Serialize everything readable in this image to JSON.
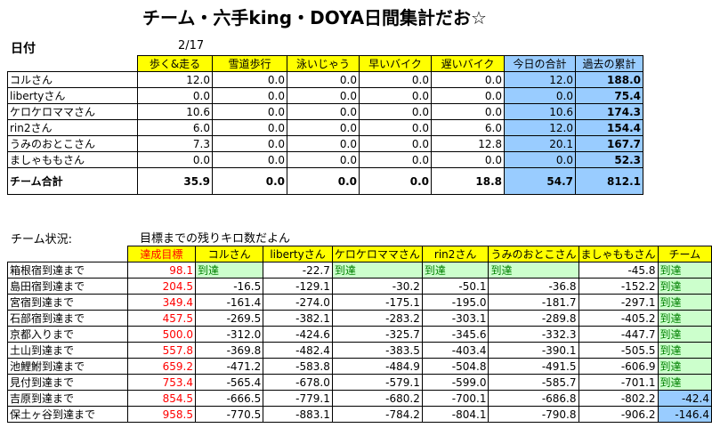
{
  "title": "チーム・六手king・DOYA日間集計だお☆",
  "date": {
    "label": "日付",
    "value": "2/17"
  },
  "daily": {
    "columns": [
      "歩く&走る",
      "雪道歩行",
      "泳いじゃう",
      "早いバイク",
      "遅いバイク",
      "今日の合計",
      "過去の累計"
    ],
    "rows": [
      {
        "name": "コルさん",
        "values": [
          "12.0",
          "0.0",
          "0.0",
          "0.0",
          "0.0",
          "12.0",
          "188.0"
        ]
      },
      {
        "name": "libertyさん",
        "values": [
          "0.0",
          "0.0",
          "0.0",
          "0.0",
          "0.0",
          "0.0",
          "75.4"
        ]
      },
      {
        "name": "ケロケロママさん",
        "values": [
          "10.6",
          "0.0",
          "0.0",
          "0.0",
          "0.0",
          "10.6",
          "174.3"
        ]
      },
      {
        "name": "rin2さん",
        "values": [
          "6.0",
          "0.0",
          "0.0",
          "0.0",
          "6.0",
          "12.0",
          "154.4"
        ]
      },
      {
        "name": "うみのおとこさん",
        "values": [
          "7.3",
          "0.0",
          "0.0",
          "0.0",
          "12.8",
          "20.1",
          "167.7"
        ]
      },
      {
        "name": "ましゃももさん",
        "values": [
          "0.0",
          "0.0",
          "0.0",
          "0.0",
          "0.0",
          "0.0",
          "52.3"
        ]
      }
    ],
    "total": {
      "name": "チーム合計",
      "values": [
        "35.9",
        "0.0",
        "0.0",
        "0.0",
        "18.8",
        "54.7",
        "812.1"
      ]
    }
  },
  "status": {
    "label": "チーム状況:",
    "note": "目標までの残りキロ数だよん",
    "columns": [
      "達成目標",
      "コルさん",
      "libertyさん",
      "ケロケロママさん",
      "rin2さん",
      "うみのおとこさん",
      "ましゃももさん",
      "チーム"
    ],
    "rows": [
      {
        "name": "箱根宿到達まで",
        "target": "98.1",
        "cells": [
          "到達",
          "-22.7",
          "到達",
          "到達",
          "到達",
          "-45.8",
          "到達"
        ]
      },
      {
        "name": "島田宿到達まで",
        "target": "204.5",
        "cells": [
          "-16.5",
          "-129.1",
          "-30.2",
          "-50.1",
          "-36.8",
          "-152.2",
          "到達"
        ]
      },
      {
        "name": "宮宿到達まで",
        "target": "349.4",
        "cells": [
          "-161.4",
          "-274.0",
          "-175.1",
          "-195.0",
          "-181.7",
          "-297.1",
          "到達"
        ]
      },
      {
        "name": "石部宿到達まで",
        "target": "457.5",
        "cells": [
          "-269.5",
          "-382.1",
          "-283.2",
          "-303.1",
          "-289.8",
          "-405.2",
          "到達"
        ]
      },
      {
        "name": "京都入りまで",
        "target": "500.0",
        "cells": [
          "-312.0",
          "-424.6",
          "-325.7",
          "-345.6",
          "-332.3",
          "-447.7",
          "到達"
        ]
      },
      {
        "name": "土山到達まで",
        "target": "557.8",
        "cells": [
          "-369.8",
          "-482.4",
          "-383.5",
          "-403.4",
          "-390.1",
          "-505.5",
          "到達"
        ]
      },
      {
        "name": "池鯉鮒到達まで",
        "target": "659.2",
        "cells": [
          "-471.2",
          "-583.8",
          "-484.9",
          "-504.8",
          "-491.5",
          "-606.9",
          "到達"
        ]
      },
      {
        "name": "見付到達まで",
        "target": "753.4",
        "cells": [
          "-565.4",
          "-678.0",
          "-579.1",
          "-599.0",
          "-585.7",
          "-701.1",
          "到達"
        ]
      },
      {
        "name": "吉原到達まで",
        "target": "854.5",
        "cells": [
          "-666.5",
          "-779.1",
          "-680.2",
          "-700.1",
          "-686.8",
          "-802.2",
          "-42.4"
        ]
      },
      {
        "name": "保土ヶ谷到達まで",
        "target": "958.5",
        "cells": [
          "-770.5",
          "-883.1",
          "-784.2",
          "-804.1",
          "-790.8",
          "-906.2",
          "-146.4"
        ]
      }
    ]
  },
  "colors": {
    "header": "#ffff00",
    "totals": "#99ccff",
    "reached": "#ccffcc",
    "target_text": "#ff0000"
  }
}
